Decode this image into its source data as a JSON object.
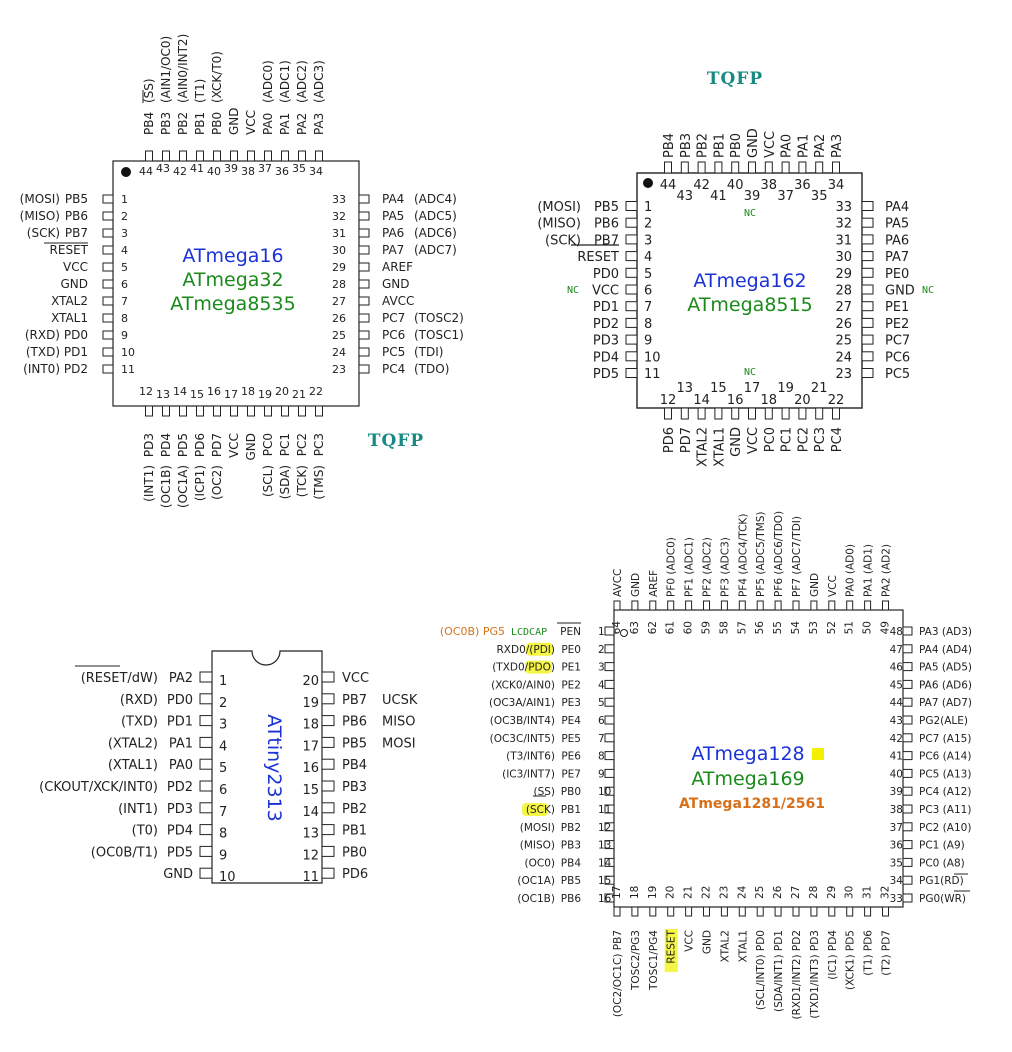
{
  "colors": {
    "blue": "#1a33d6",
    "green": "#1a8a1a",
    "orange": "#d8701a",
    "teal": "#178b83",
    "highlight": "#f5f545"
  },
  "chip1": {
    "names": [
      "ATmega16",
      "ATmega32",
      "ATmega8535"
    ],
    "package": "TQFP",
    "top": [
      [
        "44",
        "PB4",
        "(SS)",
        true
      ],
      [
        "43",
        "PB3",
        "(AIN1/OC0)"
      ],
      [
        "42",
        "PB2",
        "(AIN0/INT2)"
      ],
      [
        "41",
        "PB1",
        "(T1)"
      ],
      [
        "40",
        "PB0",
        "(XCK/T0)"
      ],
      [
        "39",
        "GND",
        ""
      ],
      [
        "38",
        "VCC",
        ""
      ],
      [
        "37",
        "PA0",
        "(ADC0)"
      ],
      [
        "36",
        "PA1",
        "(ADC1)"
      ],
      [
        "35",
        "PA2",
        "(ADC2)"
      ],
      [
        "34",
        "PA3",
        "(ADC3)"
      ]
    ],
    "left": [
      [
        "1",
        "PB5",
        "(MOSI)"
      ],
      [
        "2",
        "PB6",
        "(MISO)"
      ],
      [
        "3",
        "PB7",
        "(SCK)"
      ],
      [
        "4",
        "RESET",
        "",
        true
      ],
      [
        "5",
        "VCC",
        ""
      ],
      [
        "6",
        "GND",
        ""
      ],
      [
        "7",
        "XTAL2",
        ""
      ],
      [
        "8",
        "XTAL1",
        ""
      ],
      [
        "9",
        "PD0",
        "(RXD)"
      ],
      [
        "10",
        "PD1",
        "(TXD)"
      ],
      [
        "11",
        "PD2",
        "(INT0)"
      ]
    ],
    "right": [
      [
        "33",
        "PA4",
        "(ADC4)"
      ],
      [
        "32",
        "PA5",
        "(ADC5)"
      ],
      [
        "31",
        "PA6",
        "(ADC6)"
      ],
      [
        "30",
        "PA7",
        "(ADC7)"
      ],
      [
        "29",
        "AREF",
        ""
      ],
      [
        "28",
        "GND",
        ""
      ],
      [
        "27",
        "AVCC",
        ""
      ],
      [
        "26",
        "PC7",
        "(TOSC2)"
      ],
      [
        "25",
        "PC6",
        "(TOSC1)"
      ],
      [
        "24",
        "PC5",
        "(TDI)"
      ],
      [
        "23",
        "PC4",
        "(TDO)"
      ]
    ],
    "bottom": [
      [
        "12",
        "PD3",
        "(INT1)"
      ],
      [
        "13",
        "PD4",
        "(OC1B)"
      ],
      [
        "14",
        "PD5",
        "(OC1A)"
      ],
      [
        "15",
        "PD6",
        "(ICP1)"
      ],
      [
        "16",
        "PD7",
        "(OC2)"
      ],
      [
        "17",
        "VCC",
        ""
      ],
      [
        "18",
        "GND",
        ""
      ],
      [
        "19",
        "PC0",
        "(SCL)"
      ],
      [
        "20",
        "PC1",
        "(SDA)"
      ],
      [
        "21",
        "PC2",
        "(TCK)"
      ],
      [
        "22",
        "PC3",
        "(TMS)"
      ]
    ]
  },
  "chip2": {
    "names": [
      "ATmega162",
      "ATmega8515"
    ],
    "package": "TQFP",
    "nc": "NC",
    "top": [
      [
        "44",
        "PB4"
      ],
      [
        "43",
        "PB3"
      ],
      [
        "42",
        "PB2"
      ],
      [
        "41",
        "PB1"
      ],
      [
        "40",
        "PB0"
      ],
      [
        "39",
        "GND"
      ],
      [
        "38",
        "VCC"
      ],
      [
        "37",
        "PA0"
      ],
      [
        "36",
        "PA1"
      ],
      [
        "35",
        "PA2"
      ],
      [
        "34",
        "PA3"
      ]
    ],
    "left": [
      [
        "1",
        "PB5",
        "(MOSI)"
      ],
      [
        "2",
        "PB6",
        "(MISO)"
      ],
      [
        "3",
        "PB7",
        "(SCK)"
      ],
      [
        "4",
        "RESET",
        ""
      ],
      [
        "5",
        "PD0",
        ""
      ],
      [
        "6",
        "VCC",
        ""
      ],
      [
        "7",
        "PD1",
        ""
      ],
      [
        "8",
        "PD2",
        ""
      ],
      [
        "9",
        "PD3",
        ""
      ],
      [
        "10",
        "PD4",
        ""
      ],
      [
        "11",
        "PD5",
        ""
      ]
    ],
    "right": [
      [
        "33",
        "PA4"
      ],
      [
        "32",
        "PA5"
      ],
      [
        "31",
        "PA6"
      ],
      [
        "30",
        "PA7"
      ],
      [
        "29",
        "PE0"
      ],
      [
        "28",
        "GND"
      ],
      [
        "27",
        "PE1"
      ],
      [
        "26",
        "PE2"
      ],
      [
        "25",
        "PC7"
      ],
      [
        "24",
        "PC6"
      ],
      [
        "23",
        "PC5"
      ]
    ],
    "bottom": [
      [
        "12",
        "PD6"
      ],
      [
        "13",
        "PD7"
      ],
      [
        "14",
        "XTAL2"
      ],
      [
        "15",
        "XTAL1"
      ],
      [
        "16",
        "GND"
      ],
      [
        "17",
        "VCC"
      ],
      [
        "18",
        "PC0"
      ],
      [
        "19",
        "PC1"
      ],
      [
        "20",
        "PC2"
      ],
      [
        "21",
        "PC3"
      ],
      [
        "22",
        "PC4"
      ]
    ]
  },
  "chip3": {
    "name": "ATtiny2313",
    "left": [
      [
        "1",
        "PA2",
        "(RESET/dW)"
      ],
      [
        "2",
        "PD0",
        "(RXD)"
      ],
      [
        "3",
        "PD1",
        "(TXD)"
      ],
      [
        "4",
        "PA1",
        "(XTAL2)"
      ],
      [
        "5",
        "PA0",
        "(XTAL1)"
      ],
      [
        "6",
        "PD2",
        "(CKOUT/XCK/INT0)"
      ],
      [
        "7",
        "PD3",
        "(INT1)"
      ],
      [
        "8",
        "PD4",
        "(T0)"
      ],
      [
        "9",
        "PD5",
        "(OC0B/T1)"
      ],
      [
        "10",
        "GND",
        ""
      ]
    ],
    "right": [
      [
        "20",
        "VCC",
        ""
      ],
      [
        "19",
        "PB7",
        "UCSK"
      ],
      [
        "18",
        "PB6",
        "MISO"
      ],
      [
        "17",
        "PB5",
        "MOSI"
      ],
      [
        "16",
        "PB4",
        ""
      ],
      [
        "15",
        "PB3",
        ""
      ],
      [
        "14",
        "PB2",
        ""
      ],
      [
        "13",
        "PB1",
        ""
      ],
      [
        "12",
        "PB0",
        ""
      ],
      [
        "11",
        "PD6",
        ""
      ]
    ]
  },
  "chip4": {
    "names": [
      "ATmega128",
      "ATmega169",
      "ATmega1281/2561"
    ],
    "pin1_extra": [
      "(OC0B) PG5",
      "LCDCAP"
    ],
    "top": [
      [
        "64",
        "AVCC"
      ],
      [
        "63",
        "GND"
      ],
      [
        "62",
        "AREF"
      ],
      [
        "61",
        "PF0 (ADC0)"
      ],
      [
        "60",
        "PF1 (ADC1)"
      ],
      [
        "59",
        "PF2 (ADC2)"
      ],
      [
        "58",
        "PF3 (ADC3)"
      ],
      [
        "57",
        "PF4 (ADC4/TCK)"
      ],
      [
        "56",
        "PF5 (ADC5/TMS)"
      ],
      [
        "55",
        "PF6 (ADC6/TDO)"
      ],
      [
        "54",
        "PF7 (ADC7/TDI)"
      ],
      [
        "53",
        "GND"
      ],
      [
        "52",
        "VCC"
      ],
      [
        "51",
        "PA0 (AD0)"
      ],
      [
        "50",
        "PA1 (AD1)"
      ],
      [
        "49",
        "PA2 (AD2)"
      ]
    ],
    "left": [
      [
        "1",
        "PEN",
        ""
      ],
      [
        "2",
        "PE0",
        "RXD0/(PDI)"
      ],
      [
        "3",
        "PE1",
        "(TXD0/PDO)"
      ],
      [
        "4",
        "PE2",
        "(XCK0/AIN0)"
      ],
      [
        "5",
        "PE3",
        "(OC3A/AIN1)"
      ],
      [
        "6",
        "PE4",
        "(OC3B/INT4)"
      ],
      [
        "7",
        "PE5",
        "(OC3C/INT5)"
      ],
      [
        "8",
        "PE6",
        "(T3/INT6)"
      ],
      [
        "9",
        "PE7",
        "(IC3/INT7)"
      ],
      [
        "10",
        "PB0",
        "(SS)"
      ],
      [
        "11",
        "PB1",
        "(SCK)"
      ],
      [
        "12",
        "PB2",
        "(MOSI)"
      ],
      [
        "13",
        "PB3",
        "(MISO)"
      ],
      [
        "14",
        "PB4",
        "(OC0)"
      ],
      [
        "15",
        "PB5",
        "(OC1A)"
      ],
      [
        "16",
        "PB6",
        "(OC1B)"
      ]
    ],
    "right": [
      [
        "48",
        "PA3 (AD3)"
      ],
      [
        "47",
        "PA4 (AD4)"
      ],
      [
        "46",
        "PA5 (AD5)"
      ],
      [
        "45",
        "PA6 (AD6)"
      ],
      [
        "44",
        "PA7 (AD7)"
      ],
      [
        "43",
        "PG2(ALE)"
      ],
      [
        "42",
        "PC7 (A15)"
      ],
      [
        "41",
        "PC6 (A14)"
      ],
      [
        "40",
        "PC5 (A13)"
      ],
      [
        "39",
        "PC4 (A12)"
      ],
      [
        "38",
        "PC3 (A11)"
      ],
      [
        "37",
        "PC2 (A10)"
      ],
      [
        "36",
        "PC1 (A9)"
      ],
      [
        "35",
        "PC0 (A8)"
      ],
      [
        "34",
        "PG1(RD)"
      ],
      [
        "33",
        "PG0(WR)"
      ]
    ],
    "bottom": [
      [
        "17",
        "(OC2/OC1C) PB7"
      ],
      [
        "18",
        "TOSC2/PG3"
      ],
      [
        "19",
        "TOSC1/PG4"
      ],
      [
        "20",
        "RESET"
      ],
      [
        "21",
        "VCC"
      ],
      [
        "22",
        "GND"
      ],
      [
        "23",
        "XTAL2"
      ],
      [
        "24",
        "XTAL1"
      ],
      [
        "25",
        "(SCL/INT0) PD0"
      ],
      [
        "26",
        "(SDA/INT1) PD1"
      ],
      [
        "27",
        "(RXD1/INT2) PD2"
      ],
      [
        "28",
        "(TXD1/INT3) PD3"
      ],
      [
        "29",
        "(IC1) PD4"
      ],
      [
        "30",
        "(XCK1) PD5"
      ],
      [
        "31",
        "(T1) PD6"
      ],
      [
        "32",
        "(T2) PD7"
      ]
    ]
  }
}
